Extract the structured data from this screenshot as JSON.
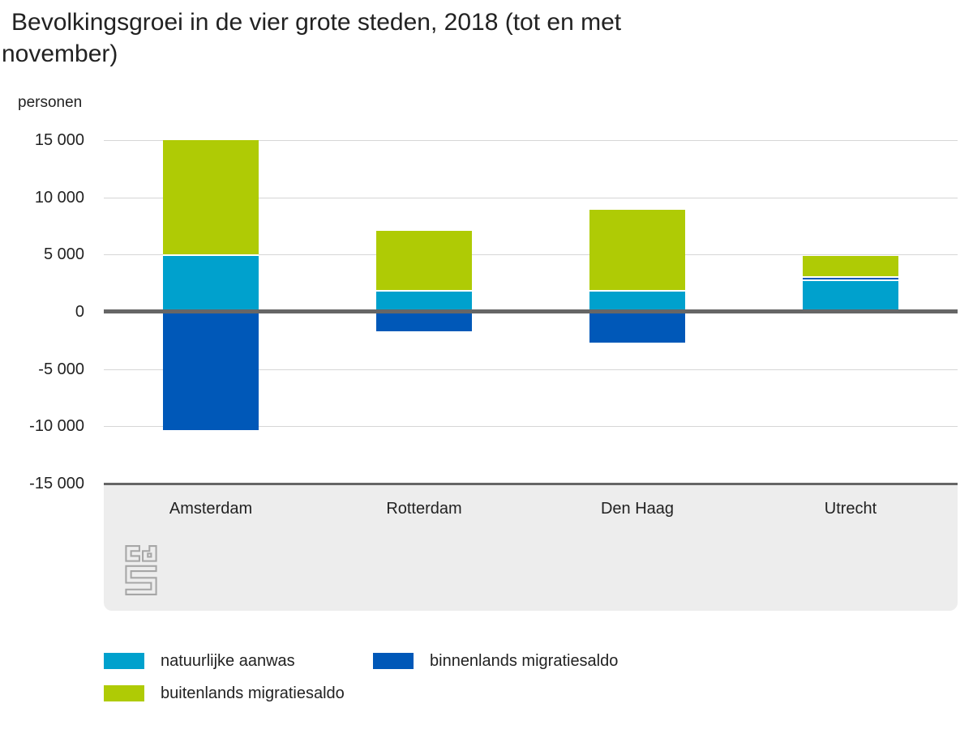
{
  "title": "Bevolkingsgroei in de vier grote steden, 2018 (tot en met november)",
  "chart_data": {
    "type": "bar",
    "stacked": true,
    "title": "Bevolkingsgroei in de vier grote steden, 2018 (tot en met november)",
    "ylabel": "personen",
    "categories": [
      "Amsterdam",
      "Rotterdam",
      "Den Haag",
      "Utrecht"
    ],
    "series": [
      {
        "name": "natuurlijke aanwas",
        "color": "#00A1CD",
        "values": [
          4900,
          1800,
          1800,
          2700
        ]
      },
      {
        "name": "binnenlands migratiesaldo",
        "color": "#0058B8",
        "values": [
          -10300,
          -1700,
          -2700,
          250
        ]
      },
      {
        "name": "buitenlands migratiesaldo",
        "color": "#AFCB05",
        "values": [
          10100,
          5300,
          7100,
          1950
        ]
      }
    ],
    "ylim": [
      -15000,
      15000
    ],
    "yticks": [
      {
        "value": 15000,
        "label": "15 000"
      },
      {
        "value": 10000,
        "label": "10 000"
      },
      {
        "value": 5000,
        "label": "5 000"
      },
      {
        "value": 0,
        "label": "0"
      },
      {
        "value": -5000,
        "label": "-5 000"
      },
      {
        "value": -10000,
        "label": "-10 000"
      },
      {
        "value": -15000,
        "label": "-15 000"
      }
    ],
    "grid": true,
    "legend_position": "bottom"
  },
  "legend": {
    "items": [
      {
        "label": "natuurlijke aanwas",
        "color": "#00A1CD"
      },
      {
        "label": "binnenlands migratiesaldo",
        "color": "#0058B8"
      },
      {
        "label": "buitenlands migratiesaldo",
        "color": "#AFCB05"
      }
    ]
  },
  "colors": {
    "axis": "#666666",
    "grid": "#d6d6d6",
    "band_bg": "#ededed",
    "logo": "#a6a6a6",
    "text": "#222222"
  },
  "logo_label": "cbs"
}
